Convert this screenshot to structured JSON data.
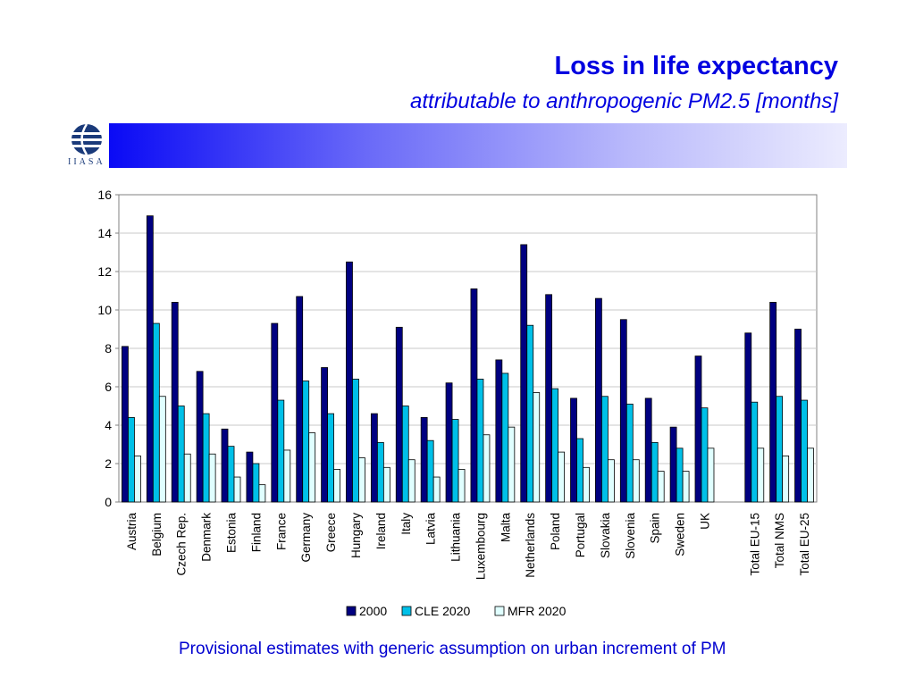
{
  "header": {
    "title": "Loss in life expectancy",
    "subtitle": "attributable to anthropogenic PM2.5 [months]"
  },
  "logo": {
    "text": "IIASA",
    "icon": "iiasa-logo-icon"
  },
  "footnote": "Provisional estimates with generic assumption on urban increment of PM",
  "colors": {
    "accent": "#0000e0",
    "banner_start": "#0a0af5",
    "banner_end": "#ececfe"
  },
  "chart_data": {
    "type": "bar",
    "categories": [
      "Austria",
      "Belgium",
      "Czech Rep.",
      "Denmark",
      "Estonia",
      "Finland",
      "France",
      "Germany",
      "Greece",
      "Hungary",
      "Ireland",
      "Italy",
      "Latvia",
      "Lithuania",
      "Luxembourg",
      "Malta",
      "Netherlands",
      "Poland",
      "Portugal",
      "Slovakia",
      "Slovenia",
      "Spain",
      "Sweden",
      "UK",
      "",
      "Total EU-15",
      "Total NMS",
      "Total EU-25"
    ],
    "series": [
      {
        "name": "2000",
        "color": "#000080",
        "values": [
          8.1,
          14.9,
          10.4,
          6.8,
          3.8,
          2.6,
          9.3,
          10.7,
          7.0,
          12.5,
          4.6,
          9.1,
          4.4,
          6.2,
          11.1,
          7.4,
          13.4,
          10.8,
          5.4,
          10.6,
          9.5,
          5.4,
          3.9,
          7.6,
          null,
          8.8,
          10.4,
          9.0
        ]
      },
      {
        "name": "CLE 2020",
        "color": "#00c0e8",
        "values": [
          4.4,
          9.3,
          5.0,
          4.6,
          2.9,
          2.0,
          5.3,
          6.3,
          4.6,
          6.4,
          3.1,
          5.0,
          3.2,
          4.3,
          6.4,
          6.7,
          9.2,
          5.9,
          3.3,
          5.5,
          5.1,
          3.1,
          2.8,
          4.9,
          null,
          5.2,
          5.5,
          5.3
        ]
      },
      {
        "name": "MFR 2020",
        "color": "#e0ffff",
        "values": [
          2.4,
          5.5,
          2.5,
          2.5,
          1.3,
          0.9,
          2.7,
          3.6,
          1.7,
          2.3,
          1.8,
          2.2,
          1.3,
          1.7,
          3.5,
          3.9,
          5.7,
          2.6,
          1.8,
          2.2,
          2.2,
          1.6,
          1.6,
          2.8,
          null,
          2.8,
          2.4,
          2.8
        ]
      }
    ],
    "ylim": [
      0,
      16
    ],
    "yticks": [
      "0",
      "2",
      "4",
      "6",
      "8",
      "10",
      "12",
      "14",
      "16"
    ],
    "grid": true,
    "legend": "bottom-center"
  }
}
